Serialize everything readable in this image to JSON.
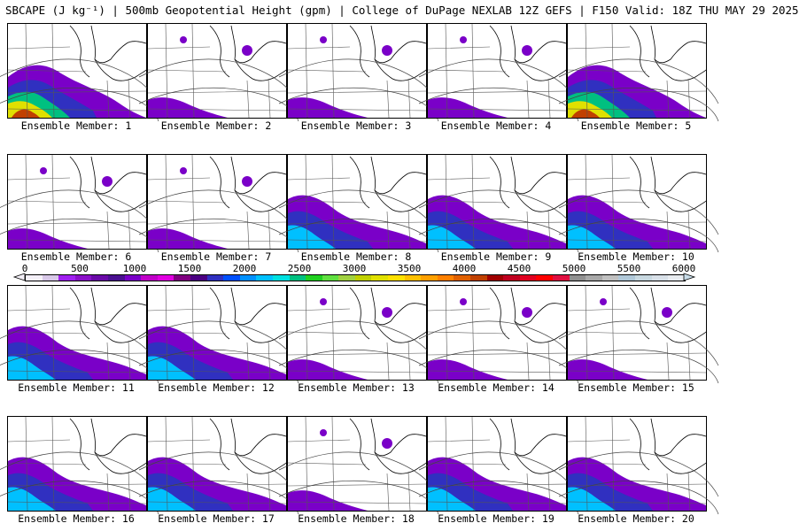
{
  "header": {
    "title": "SBCAPE (J kg⁻¹) | 500mb Geopotential Height (gpm) | College of DuPage NEXLAB 12Z GEFS | F150 Valid: 18Z THU MAY 29 2025"
  },
  "members": [
    {
      "label": "Ensemble Member: 1",
      "cape": "strong-sw"
    },
    {
      "label": "Ensemble Member: 2",
      "cape": "weak"
    },
    {
      "label": "Ensemble Member: 3",
      "cape": "weak"
    },
    {
      "label": "Ensemble Member: 4",
      "cape": "weak"
    },
    {
      "label": "Ensemble Member: 5",
      "cape": "strong-sw"
    },
    {
      "label": "Ensemble Member: 6",
      "cape": "weak"
    },
    {
      "label": "Ensemble Member: 7",
      "cape": "weak"
    },
    {
      "label": "Ensemble Member: 8",
      "cape": "moderate"
    },
    {
      "label": "Ensemble Member: 9",
      "cape": "moderate"
    },
    {
      "label": "Ensemble Member: 10",
      "cape": "moderate"
    },
    {
      "label": "Ensemble Member: 11",
      "cape": "moderate"
    },
    {
      "label": "Ensemble Member: 12",
      "cape": "moderate"
    },
    {
      "label": "Ensemble Member: 13",
      "cape": "weak"
    },
    {
      "label": "Ensemble Member: 14",
      "cape": "weak"
    },
    {
      "label": "Ensemble Member: 15",
      "cape": "weak"
    },
    {
      "label": "Ensemble Member: 16",
      "cape": "moderate"
    },
    {
      "label": "Ensemble Member: 17",
      "cape": "moderate"
    },
    {
      "label": "Ensemble Member: 18",
      "cape": "weak"
    },
    {
      "label": "Ensemble Member: 19",
      "cape": "moderate"
    },
    {
      "label": "Ensemble Member: 20",
      "cape": "moderate"
    }
  ],
  "colorbar": {
    "ticks": [
      "0",
      "500",
      "1000",
      "1500",
      "2000",
      "2500",
      "3000",
      "3500",
      "4000",
      "4500",
      "5000",
      "5500",
      "6000"
    ],
    "colors": [
      "#f4f0f8",
      "#d8c8e8",
      "#a020f0",
      "#8a10c8",
      "#6a0aa8",
      "#4a1090",
      "#7a00c8",
      "#c000c8",
      "#e000e0",
      "#800080",
      "#4b0082",
      "#3030c0",
      "#0050ff",
      "#0090ff",
      "#00c0ff",
      "#00e0e0",
      "#00c080",
      "#20d020",
      "#60e040",
      "#a0d040",
      "#c0d000",
      "#e0e000",
      "#ffe000",
      "#ffc000",
      "#ffa000",
      "#ff8000",
      "#e06000",
      "#c04000",
      "#a00000",
      "#c00020",
      "#e00020",
      "#ff0000",
      "#e01040",
      "#909090",
      "#a8a8a8",
      "#c0c0c0",
      "#b0c8d8",
      "#c8d8e0",
      "#d8e0e8",
      "#e8ecf0"
    ]
  }
}
